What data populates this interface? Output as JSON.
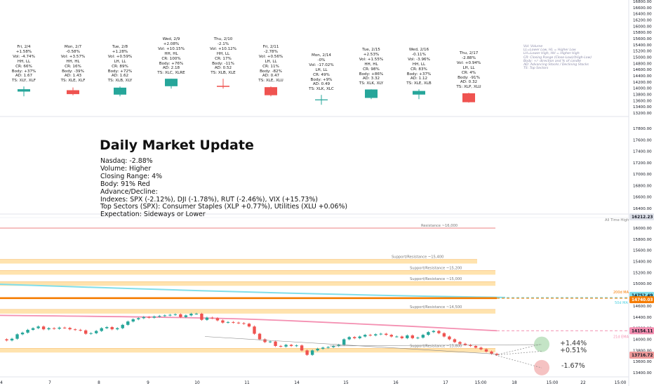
{
  "summary": {
    "title": "Daily Market Update",
    "lines": [
      "Nasdaq: -2.88%",
      "Volume: Higher",
      "Closing Range: 4%",
      "Body: 91% Red",
      "Advance/Decline:",
      "Indexes: SPX (-2.12%), DJI (-1.78%), RUT (-2.46%), VIX (+15.73%)",
      "Top Sectors (SPX): Consumer Staples (XLP +0.77%), Utilities (XLU +0.06%)",
      "Expectation: Sideways or Lower"
    ]
  },
  "legend": [
    "Vol: Volume",
    "LL=Lower Low, HL = Higher Low",
    "LH=Lower High, HH = Higher High",
    "CR: Closing Range (Close-Low)/(High-Low)",
    "Body: +/- direction and % of candle",
    "AD: Advancing Stocks / Declining Stocks",
    "TS: Top Sectors"
  ],
  "colors": {
    "up": "#26a69a",
    "down": "#ef5350",
    "sr_fill": "#ffe3ae",
    "sr_line": "#f4b968",
    "ema50": "#f57c00",
    "sma": "#80deea",
    "ema21": "#f48fb1",
    "resistance": "#ef9a9a",
    "axis_text": "#131722",
    "grid": "#e0e3eb"
  },
  "price_axis_top": {
    "labels": [
      "16800.00",
      "16600.00",
      "16400.00",
      "16200.00",
      "16000.00",
      "15800.00",
      "15600.00",
      "15400.00",
      "15200.00",
      "15000.00",
      "14800.00",
      "14600.00",
      "14400.00",
      "14200.00",
      "14000.00",
      "13800.00",
      "13600.00",
      "13400.00",
      "13200.00"
    ]
  },
  "price_axis_mid": {
    "labels": [
      "17800.00",
      "17600.00",
      "17400.00",
      "17200.00",
      "17000.00",
      "16800.00",
      "16600.00",
      "16400.00"
    ]
  },
  "price_axis_bot": {
    "labels": [
      "16000.00",
      "15800.00",
      "15600.00",
      "15400.00",
      "15200.00",
      "15000.00",
      "14800.00",
      "14600.00",
      "14400.00",
      "14200.00",
      "14000.00",
      "13800.00",
      "13600.00",
      "13400.00"
    ]
  },
  "price_tags": [
    {
      "text": "16212.23",
      "kind": "ath"
    },
    {
      "text": "14752.49",
      "kind": "sma"
    },
    {
      "text": "14740.03",
      "kind": "ema50"
    },
    {
      "text": "14154.11",
      "kind": "ema21"
    },
    {
      "text": "13716.72",
      "kind": "last"
    }
  ],
  "indicator_labels": {
    "ema50": "200d MA",
    "sma": "50d MA",
    "ema21": "21d EMA",
    "ath": "All Time High"
  },
  "levels": [
    {
      "value": 16000,
      "label": "Resistance ~16,000",
      "type": "resistance"
    },
    {
      "value": 15400,
      "label": "Support/Resistance ~15,400",
      "type": "sr"
    },
    {
      "value": 15200,
      "label": "Support/Resistance ~15,200",
      "type": "sr"
    },
    {
      "value": 15000,
      "label": "Support/Resistance ~15,000",
      "type": "sr"
    },
    {
      "value": 14500,
      "label": "Support/Resistance ~14,500",
      "type": "sr"
    },
    {
      "value": 13800,
      "label": "Support/Resistance ~13,800",
      "type": "sr"
    }
  ],
  "scenarios": [
    "+1.44%",
    "+0.51%",
    "-1.67%"
  ],
  "x_axis": {
    "labels": [
      "4",
      "7",
      "8",
      "9",
      "10",
      "11",
      "14",
      "15",
      "16",
      "17",
      "15:00",
      "18",
      "15:00",
      "22",
      "15:00"
    ]
  },
  "chart_data": {
    "type": "candlestick",
    "daily_candles": [
      {
        "date": "Fri, 2/4",
        "change": "+1.58%",
        "vol": "-4.74%",
        "hl": "HH, LL",
        "cr": "66%",
        "body": "+37%",
        "ad": "1.67",
        "ts": "XLY, XLF",
        "direction": "up",
        "candle": {
          "open": 48,
          "close": 72,
          "low": 0,
          "high": 100
        }
      },
      {
        "date": "Mon, 2/7",
        "change": "-0.58%",
        "vol": "+3.57%",
        "hl": "HH, HL",
        "cr": "16%",
        "body": "-39%",
        "ad": "1.43",
        "ts": "XLE, XLF",
        "direction": "down",
        "candle": {
          "open": 62,
          "close": 22,
          "low": 10,
          "high": 90
        }
      },
      {
        "date": "Tue, 2/8",
        "change": "+1.28%",
        "vol": "+0.59%",
        "hl": "LH, LL",
        "cr": "89%",
        "body": "+72%",
        "ad": "1.62",
        "ts": "XLB, XLY",
        "direction": "up",
        "candle": {
          "open": 17,
          "close": 88,
          "low": 0,
          "high": 100
        }
      },
      {
        "date": "Wed, 2/9",
        "change": "+2.08%",
        "vol": "+10.15%",
        "hl": "HH, HL",
        "cr": "100%",
        "body": "+76%",
        "ad": "2.18",
        "ts": "XLC, XLRE",
        "direction": "up",
        "candle": {
          "open": 24,
          "close": 100,
          "low": 0,
          "high": 100
        }
      },
      {
        "date": "Thu, 2/10",
        "change": "-2.1%",
        "vol": "+10.12%",
        "hl": "HH, LL",
        "cr": "17%",
        "body": "-11%",
        "ad": "0.52",
        "ts": "XLB, XLE",
        "direction": "down",
        "candle": {
          "open": 28,
          "close": 17,
          "low": 0,
          "high": 100
        }
      },
      {
        "date": "Fri, 2/11",
        "change": "-2.78%",
        "vol": "+0.56%",
        "hl": "LH, LL",
        "cr": "11%",
        "body": "-82%",
        "ad": "0.47",
        "ts": "XLE, XLU",
        "direction": "down",
        "candle": {
          "open": 93,
          "close": 11,
          "low": 0,
          "high": 100
        }
      },
      {
        "date": "Mon, 2/14",
        "change": "-0%",
        "vol": "-17.02%",
        "hl": "LH, LL",
        "cr": "49%",
        "body": "+9%",
        "ad": "0.49",
        "ts": "XLK, XLC",
        "direction": "up",
        "candle": {
          "open": 45,
          "close": 54,
          "low": 0,
          "high": 100
        }
      },
      {
        "date": "Tue, 2/15",
        "change": "+2.53%",
        "vol": "+1.55%",
        "hl": "HH, HL",
        "cr": "98%",
        "body": "+86%",
        "ad": "3.32",
        "ts": "XLK, XLY",
        "direction": "up",
        "candle": {
          "open": 12,
          "close": 98,
          "low": 0,
          "high": 100
        }
      },
      {
        "date": "Wed, 2/16",
        "change": "-0.11%",
        "vol": "-3.96%",
        "hl": "HH, LL",
        "cr": "83%",
        "body": "+37%",
        "ad": "1.12",
        "ts": "XLE, XLB",
        "direction": "up",
        "candle": {
          "open": 46,
          "close": 83,
          "low": 0,
          "high": 100
        }
      },
      {
        "date": "Thu, 2/17",
        "change": "-2.88%",
        "vol": "+0.94%",
        "hl": "LH, LL",
        "cr": "4%",
        "body": "-91%",
        "ad": "0.32",
        "ts": "XLP, XLU",
        "direction": "down",
        "candle": {
          "open": 95,
          "close": 4,
          "low": 0,
          "high": 100
        }
      }
    ],
    "intraday_path": [
      [
        0,
        14000
      ],
      [
        0.5,
        13980
      ],
      [
        1,
        14010
      ],
      [
        1.5,
        14090
      ],
      [
        2,
        14120
      ],
      [
        2.5,
        14170
      ],
      [
        3,
        14200
      ],
      [
        3.5,
        14230
      ],
      [
        4,
        14180
      ],
      [
        4.5,
        14200
      ],
      [
        5,
        14190
      ],
      [
        5.5,
        14210
      ],
      [
        6,
        14205
      ],
      [
        6.5,
        14180
      ],
      [
        7,
        14170
      ],
      [
        7.5,
        14160
      ],
      [
        8,
        14100
      ],
      [
        8.5,
        14110
      ],
      [
        9,
        14150
      ],
      [
        9.5,
        14200
      ],
      [
        10,
        14220
      ],
      [
        10.5,
        14180
      ],
      [
        11,
        14200
      ],
      [
        11.5,
        14260
      ],
      [
        12,
        14320
      ],
      [
        12.5,
        14360
      ],
      [
        13,
        14380
      ],
      [
        13.5,
        14400
      ],
      [
        14,
        14390
      ],
      [
        14.5,
        14410
      ],
      [
        15,
        14420
      ],
      [
        15.5,
        14430
      ],
      [
        16,
        14440
      ],
      [
        16.5,
        14450
      ],
      [
        17,
        14400
      ],
      [
        17.5,
        14430
      ],
      [
        18,
        14460
      ],
      [
        18.5,
        14460
      ],
      [
        19,
        14350
      ],
      [
        19.5,
        14390
      ],
      [
        20,
        14380
      ],
      [
        20.5,
        14340
      ],
      [
        21,
        14300
      ],
      [
        21.5,
        14310
      ],
      [
        22,
        14300
      ],
      [
        22.5,
        14290
      ],
      [
        23,
        14280
      ],
      [
        23.5,
        14230
      ],
      [
        24,
        14100
      ],
      [
        24.5,
        14000
      ],
      [
        25,
        13950
      ],
      [
        25.5,
        13960
      ],
      [
        26,
        13880
      ],
      [
        26.5,
        13870
      ],
      [
        27,
        13900
      ],
      [
        27.5,
        13880
      ],
      [
        28,
        13890
      ],
      [
        28.5,
        13800
      ],
      [
        29,
        13720
      ],
      [
        29.5,
        13800
      ],
      [
        30,
        13830
      ],
      [
        30.5,
        13850
      ],
      [
        31,
        13860
      ],
      [
        31.5,
        13880
      ],
      [
        32,
        13900
      ],
      [
        32.5,
        14000
      ],
      [
        33,
        14040
      ],
      [
        33.5,
        14020
      ],
      [
        34,
        14050
      ],
      [
        34.5,
        14080
      ],
      [
        35,
        14070
      ],
      [
        35.5,
        14090
      ],
      [
        36,
        14100
      ],
      [
        36.5,
        14080
      ],
      [
        37,
        14050
      ],
      [
        37.5,
        14050
      ],
      [
        38,
        14020
      ],
      [
        38.5,
        14070
      ],
      [
        39,
        14020
      ],
      [
        39.5,
        14030
      ],
      [
        40,
        14080
      ],
      [
        40.5,
        14130
      ],
      [
        41,
        14150
      ],
      [
        41.5,
        14110
      ],
      [
        42,
        14050
      ],
      [
        42.5,
        14000
      ],
      [
        43,
        13950
      ],
      [
        43.5,
        13920
      ],
      [
        44,
        13900
      ],
      [
        44.5,
        13880
      ],
      [
        45,
        13850
      ],
      [
        45.5,
        13820
      ],
      [
        46,
        13780
      ],
      [
        46.5,
        13740
      ],
      [
        47,
        13720
      ]
    ]
  }
}
